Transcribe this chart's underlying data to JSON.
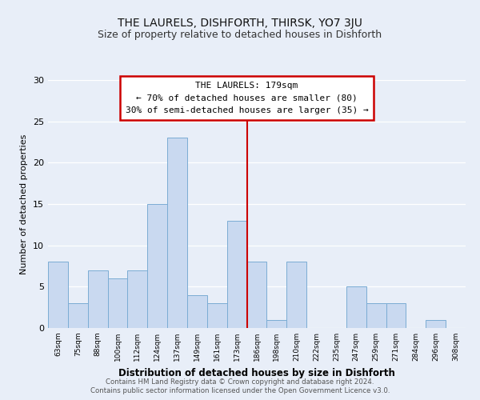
{
  "title": "THE LAURELS, DISHFORTH, THIRSK, YO7 3JU",
  "subtitle": "Size of property relative to detached houses in Dishforth",
  "xlabel": "Distribution of detached houses by size in Dishforth",
  "ylabel": "Number of detached properties",
  "footnote1": "Contains HM Land Registry data © Crown copyright and database right 2024.",
  "footnote2": "Contains public sector information licensed under the Open Government Licence v3.0.",
  "bin_labels": [
    "63sqm",
    "75sqm",
    "88sqm",
    "100sqm",
    "112sqm",
    "124sqm",
    "137sqm",
    "149sqm",
    "161sqm",
    "173sqm",
    "186sqm",
    "198sqm",
    "210sqm",
    "222sqm",
    "235sqm",
    "247sqm",
    "259sqm",
    "271sqm",
    "284sqm",
    "296sqm",
    "308sqm"
  ],
  "bar_values": [
    8,
    3,
    7,
    6,
    7,
    15,
    23,
    4,
    3,
    13,
    8,
    1,
    8,
    0,
    0,
    5,
    3,
    3,
    0,
    1,
    0
  ],
  "bar_color": "#c9d9f0",
  "bar_edgecolor": "#7bacd4",
  "vline_x_index": 10,
  "vline_color": "#cc0000",
  "annotation_title": "THE LAURELS: 179sqm",
  "annotation_line1": "← 70% of detached houses are smaller (80)",
  "annotation_line2": "30% of semi-detached houses are larger (35) →",
  "annotation_box_color": "#ffffff",
  "annotation_box_edgecolor": "#cc0000",
  "ylim": [
    0,
    30
  ],
  "yticks": [
    0,
    5,
    10,
    15,
    20,
    25,
    30
  ],
  "background_color": "#e8eef8"
}
